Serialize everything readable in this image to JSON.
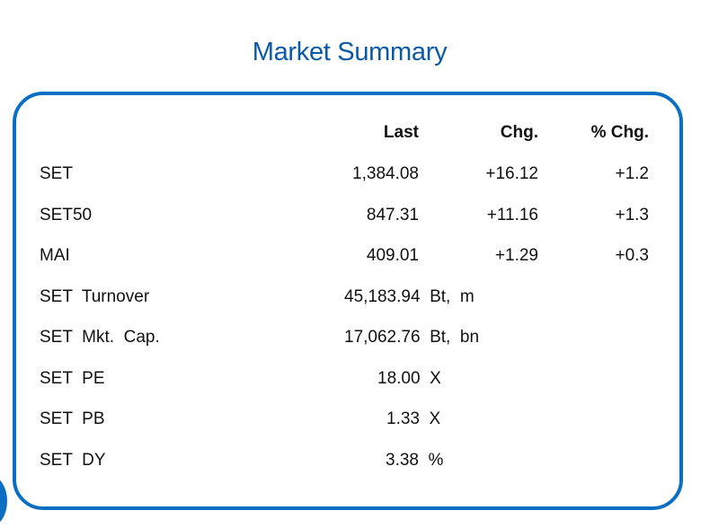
{
  "title": "Market Summary",
  "headers": {
    "last": "Last",
    "chg": "Chg.",
    "pct_chg": "% Chg."
  },
  "indices": [
    {
      "name": "SET",
      "last": "1,384.08",
      "chg": "+16.12",
      "pct_chg": "+1.2"
    },
    {
      "name": "SET50",
      "last": "847.31",
      "chg": "+11.16",
      "pct_chg": "+1.3"
    },
    {
      "name": "MAI",
      "last": "409.01",
      "chg": "+1.29",
      "pct_chg": "+0.3"
    }
  ],
  "stats": [
    {
      "name": "SET  Turnover",
      "value": "45,183.94  Bt,  m"
    },
    {
      "name": "SET  Mkt.  Cap.",
      "value": "17,062.76  Bt,  bn"
    },
    {
      "name": "SET  PE",
      "value": "18.00  X"
    },
    {
      "name": "SET  PB",
      "value": "1.33  X"
    },
    {
      "name": "SET  DY",
      "value": "3.38  %"
    }
  ],
  "colors": {
    "title": "#0a5aa6",
    "border": "#0a6fc2"
  }
}
